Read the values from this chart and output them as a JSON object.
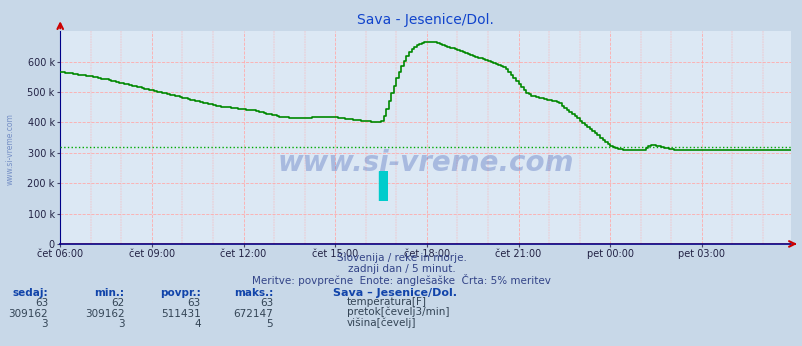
{
  "title": "Sava - Jesenice/Dol.",
  "fig_bg": "#c8d8e8",
  "plot_bg": "#dce8f4",
  "grid_color": "#ffaaaa",
  "flow_color": "#008800",
  "temp_color": "#cc0000",
  "height_color": "#000099",
  "avg_color": "#00aa00",
  "avg_value": 320000,
  "ylim_max": 700000,
  "yticks": [
    0,
    100000,
    200000,
    300000,
    400000,
    500000,
    600000
  ],
  "ytick_labels": [
    "0",
    "100 k",
    "200 k",
    "300 k",
    "400 k",
    "500 k",
    "600 k"
  ],
  "xtick_labels": [
    "čet 06:00",
    "čet 09:00",
    "čet 12:00",
    "čet 15:00",
    "čet 18:00",
    "čet 21:00",
    "pet 00:00",
    "pet 03:00"
  ],
  "subtitle1": "Slovenija / reke in morje.",
  "subtitle2": "zadnji dan / 5 minut.",
  "subtitle3": "Meritve: povprečne  Enote: anglešaške  Črta: 5% meritev",
  "watermark": "www.si-vreme.com",
  "table_headers": [
    "sedaj:",
    "min.:",
    "povpr.:",
    "maks.:"
  ],
  "table_row1": [
    "63",
    "62",
    "63",
    "63"
  ],
  "table_row2": [
    "309162",
    "309162",
    "511431",
    "672147"
  ],
  "table_row3": [
    "3",
    "3",
    "4",
    "5"
  ],
  "station_label": "Sava – Jesenice/Dol.",
  "legend_labels": [
    "temperatura[F]",
    "pretok[čevelj3/min]",
    "višina[čevelj]"
  ],
  "legend_colors": [
    "#cc0000",
    "#008800",
    "#000099"
  ],
  "flow_data": [
    565000,
    565000,
    563000,
    562000,
    561000,
    560000,
    558000,
    557000,
    556000,
    555000,
    553000,
    552000,
    551000,
    549000,
    548000,
    546000,
    544000,
    543000,
    541000,
    539000,
    537000,
    535000,
    533000,
    531000,
    529000,
    527000,
    525000,
    523000,
    521000,
    519000,
    517000,
    515000,
    513000,
    511000,
    509000,
    507000,
    505000,
    503000,
    501000,
    499000,
    497000,
    495000,
    493000,
    491000,
    489000,
    487000,
    485000,
    483000,
    481000,
    479000,
    477000,
    475000,
    473000,
    471000,
    469000,
    467000,
    465000,
    463000,
    461000,
    459000,
    457000,
    455000,
    453000,
    452000,
    451000,
    450000,
    449000,
    448000,
    447000,
    446000,
    445000,
    444000,
    443000,
    442000,
    441000,
    440000,
    439000,
    437000,
    435000,
    433000,
    431000,
    429000,
    427000,
    425000,
    423000,
    421000,
    419000,
    418000,
    417000,
    416000,
    415000,
    414000,
    413000,
    413000,
    413000,
    413000,
    413000,
    414000,
    415000,
    416000,
    417000,
    418000,
    418000,
    418000,
    418000,
    418000,
    418000,
    417000,
    416000,
    415000,
    414000,
    413000,
    412000,
    411000,
    410000,
    409000,
    408000,
    407000,
    406000,
    405000,
    404000,
    403000,
    402000,
    401000,
    401000,
    401000,
    405000,
    420000,
    445000,
    470000,
    495000,
    520000,
    545000,
    565000,
    585000,
    603000,
    618000,
    630000,
    640000,
    648000,
    654000,
    658000,
    661000,
    663000,
    664000,
    665000,
    664000,
    663000,
    661000,
    658000,
    655000,
    652000,
    649000,
    646000,
    643000,
    640000,
    637000,
    634000,
    631000,
    628000,
    625000,
    622000,
    619000,
    616000,
    613000,
    610000,
    607000,
    604000,
    601000,
    598000,
    595000,
    592000,
    589000,
    586000,
    583000,
    575000,
    565000,
    555000,
    545000,
    535000,
    525000,
    515000,
    505000,
    498000,
    492000,
    488000,
    485000,
    483000,
    481000,
    479000,
    477000,
    475000,
    473000,
    471000,
    469000,
    467000,
    462000,
    455000,
    448000,
    441000,
    434000,
    427000,
    420000,
    413000,
    406000,
    399000,
    392000,
    385000,
    378000,
    371000,
    364000,
    357000,
    350000,
    343000,
    336000,
    329000,
    322000,
    318000,
    315000,
    313000,
    311000,
    310000,
    310000,
    310000,
    310000,
    310000,
    310000,
    310000,
    310000,
    310000,
    316000,
    322000,
    326000,
    325000,
    323000,
    321000,
    319000,
    317000,
    315000,
    313000,
    311000,
    310000,
    309162,
    309162,
    309162,
    309162,
    309162,
    309162,
    309162,
    309162,
    309162,
    309162,
    309162,
    309162,
    309162,
    309162,
    309162,
    309162,
    309162,
    309162,
    309162,
    309162,
    309162,
    309162,
    309162,
    309162,
    309162,
    309162,
    309162,
    309162,
    309162,
    309162,
    309162,
    309162,
    309162,
    309162,
    309162,
    309162,
    309162,
    309162,
    309162,
    309162,
    309162,
    309162,
    309162,
    309162,
    309162,
    309162
  ]
}
